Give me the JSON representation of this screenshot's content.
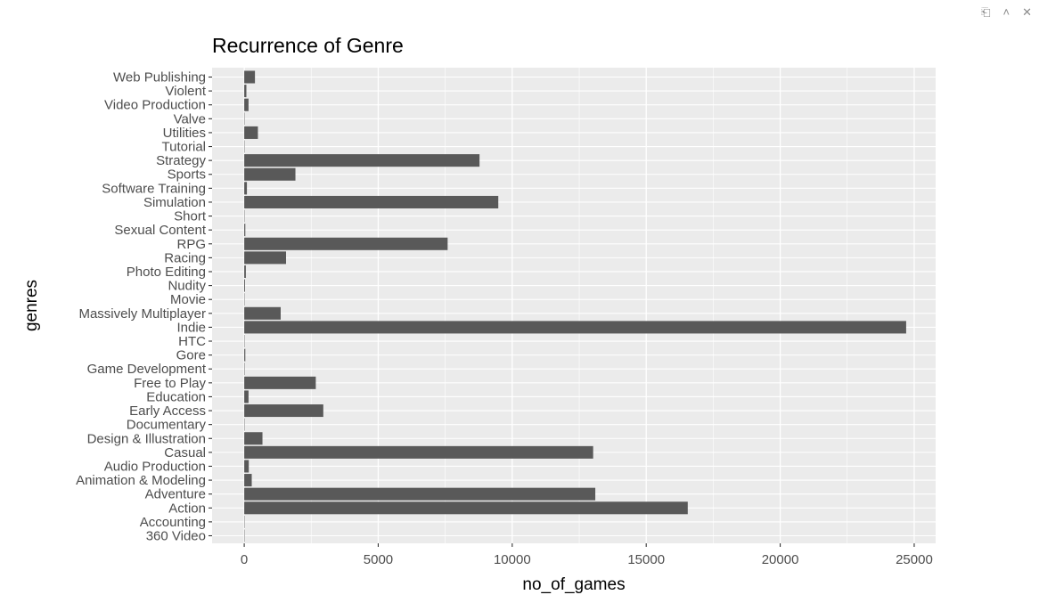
{
  "toolbar": {
    "export_icon": "export-icon",
    "collapse_icon": "chevron-up-icon",
    "close_icon": "close-icon"
  },
  "chart_data": {
    "type": "bar",
    "orientation": "horizontal",
    "title": "Recurrence of Genre",
    "xlabel": "no_of_games",
    "ylabel": "genres",
    "xlim": [
      -1200,
      25800
    ],
    "x_ticks": [
      0,
      5000,
      10000,
      15000,
      20000,
      25000
    ],
    "grid": true,
    "legend": "none",
    "bar_color": "#595959",
    "panel_color": "#ebebeb",
    "categories": [
      "360 Video",
      "Accounting",
      "Action",
      "Adventure",
      "Animation & Modeling",
      "Audio Production",
      "Casual",
      "Design & Illustration",
      "Documentary",
      "Early Access",
      "Education",
      "Free to Play",
      "Game Development",
      "Gore",
      "HTC",
      "Indie",
      "Massively Multiplayer",
      "Movie",
      "Nudity",
      "Photo Editing",
      "Racing",
      "RPG",
      "Sexual Content",
      "Short",
      "Simulation",
      "Software Training",
      "Sports",
      "Strategy",
      "Tutorial",
      "Utilities",
      "Valve",
      "Video Production",
      "Violent",
      "Web Publishing"
    ],
    "values": [
      1,
      5,
      16550,
      13100,
      280,
      170,
      13020,
      680,
      7,
      2950,
      160,
      2670,
      15,
      40,
      4,
      24700,
      1360,
      3,
      30,
      60,
      1560,
      7590,
      40,
      5,
      9480,
      100,
      1910,
      8780,
      2,
      510,
      1,
      160,
      80,
      400
    ]
  }
}
